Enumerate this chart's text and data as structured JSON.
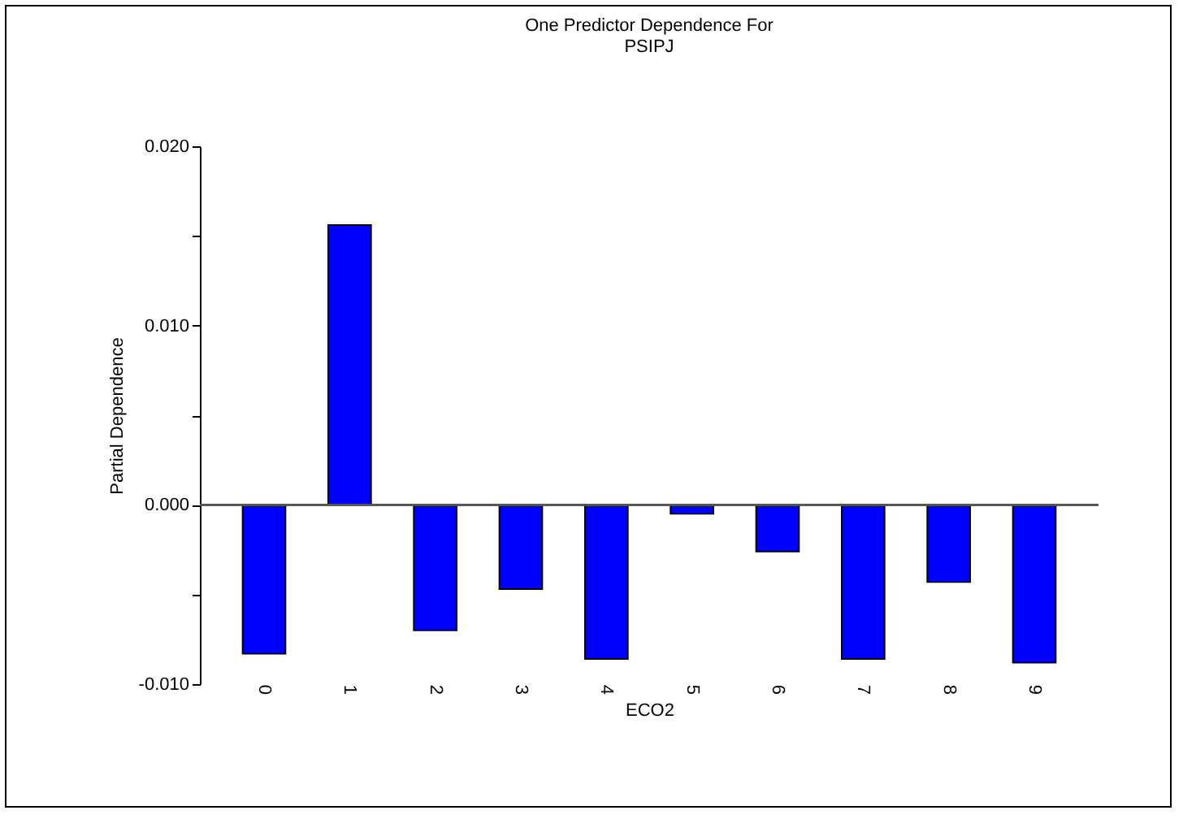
{
  "chart_data": {
    "type": "bar",
    "title": [
      "One Predictor Dependence For",
      "PSIPJ"
    ],
    "xlabel": "ECO2",
    "ylabel": "Partial Dependence",
    "categories": [
      "0",
      "1",
      "2",
      "3",
      "4",
      "5",
      "6",
      "7",
      "8",
      "9"
    ],
    "values": [
      -0.0083,
      0.0156,
      -0.007,
      -0.0047,
      -0.0086,
      -0.0005,
      -0.0026,
      -0.0086,
      -0.0043,
      -0.0088
    ],
    "color": "#0000ff",
    "ylim": [
      -0.01,
      0.02
    ],
    "yticks": [
      {
        "value": -0.01,
        "label": "-0.010"
      },
      {
        "value": -0.005,
        "label": null
      },
      {
        "value": 0,
        "label": "0.000"
      },
      {
        "value": 0.005,
        "label": null
      },
      {
        "value": 0.01,
        "label": "0.010"
      },
      {
        "value": 0.015,
        "label": null
      },
      {
        "value": 0.02,
        "label": "0.020"
      }
    ]
  }
}
